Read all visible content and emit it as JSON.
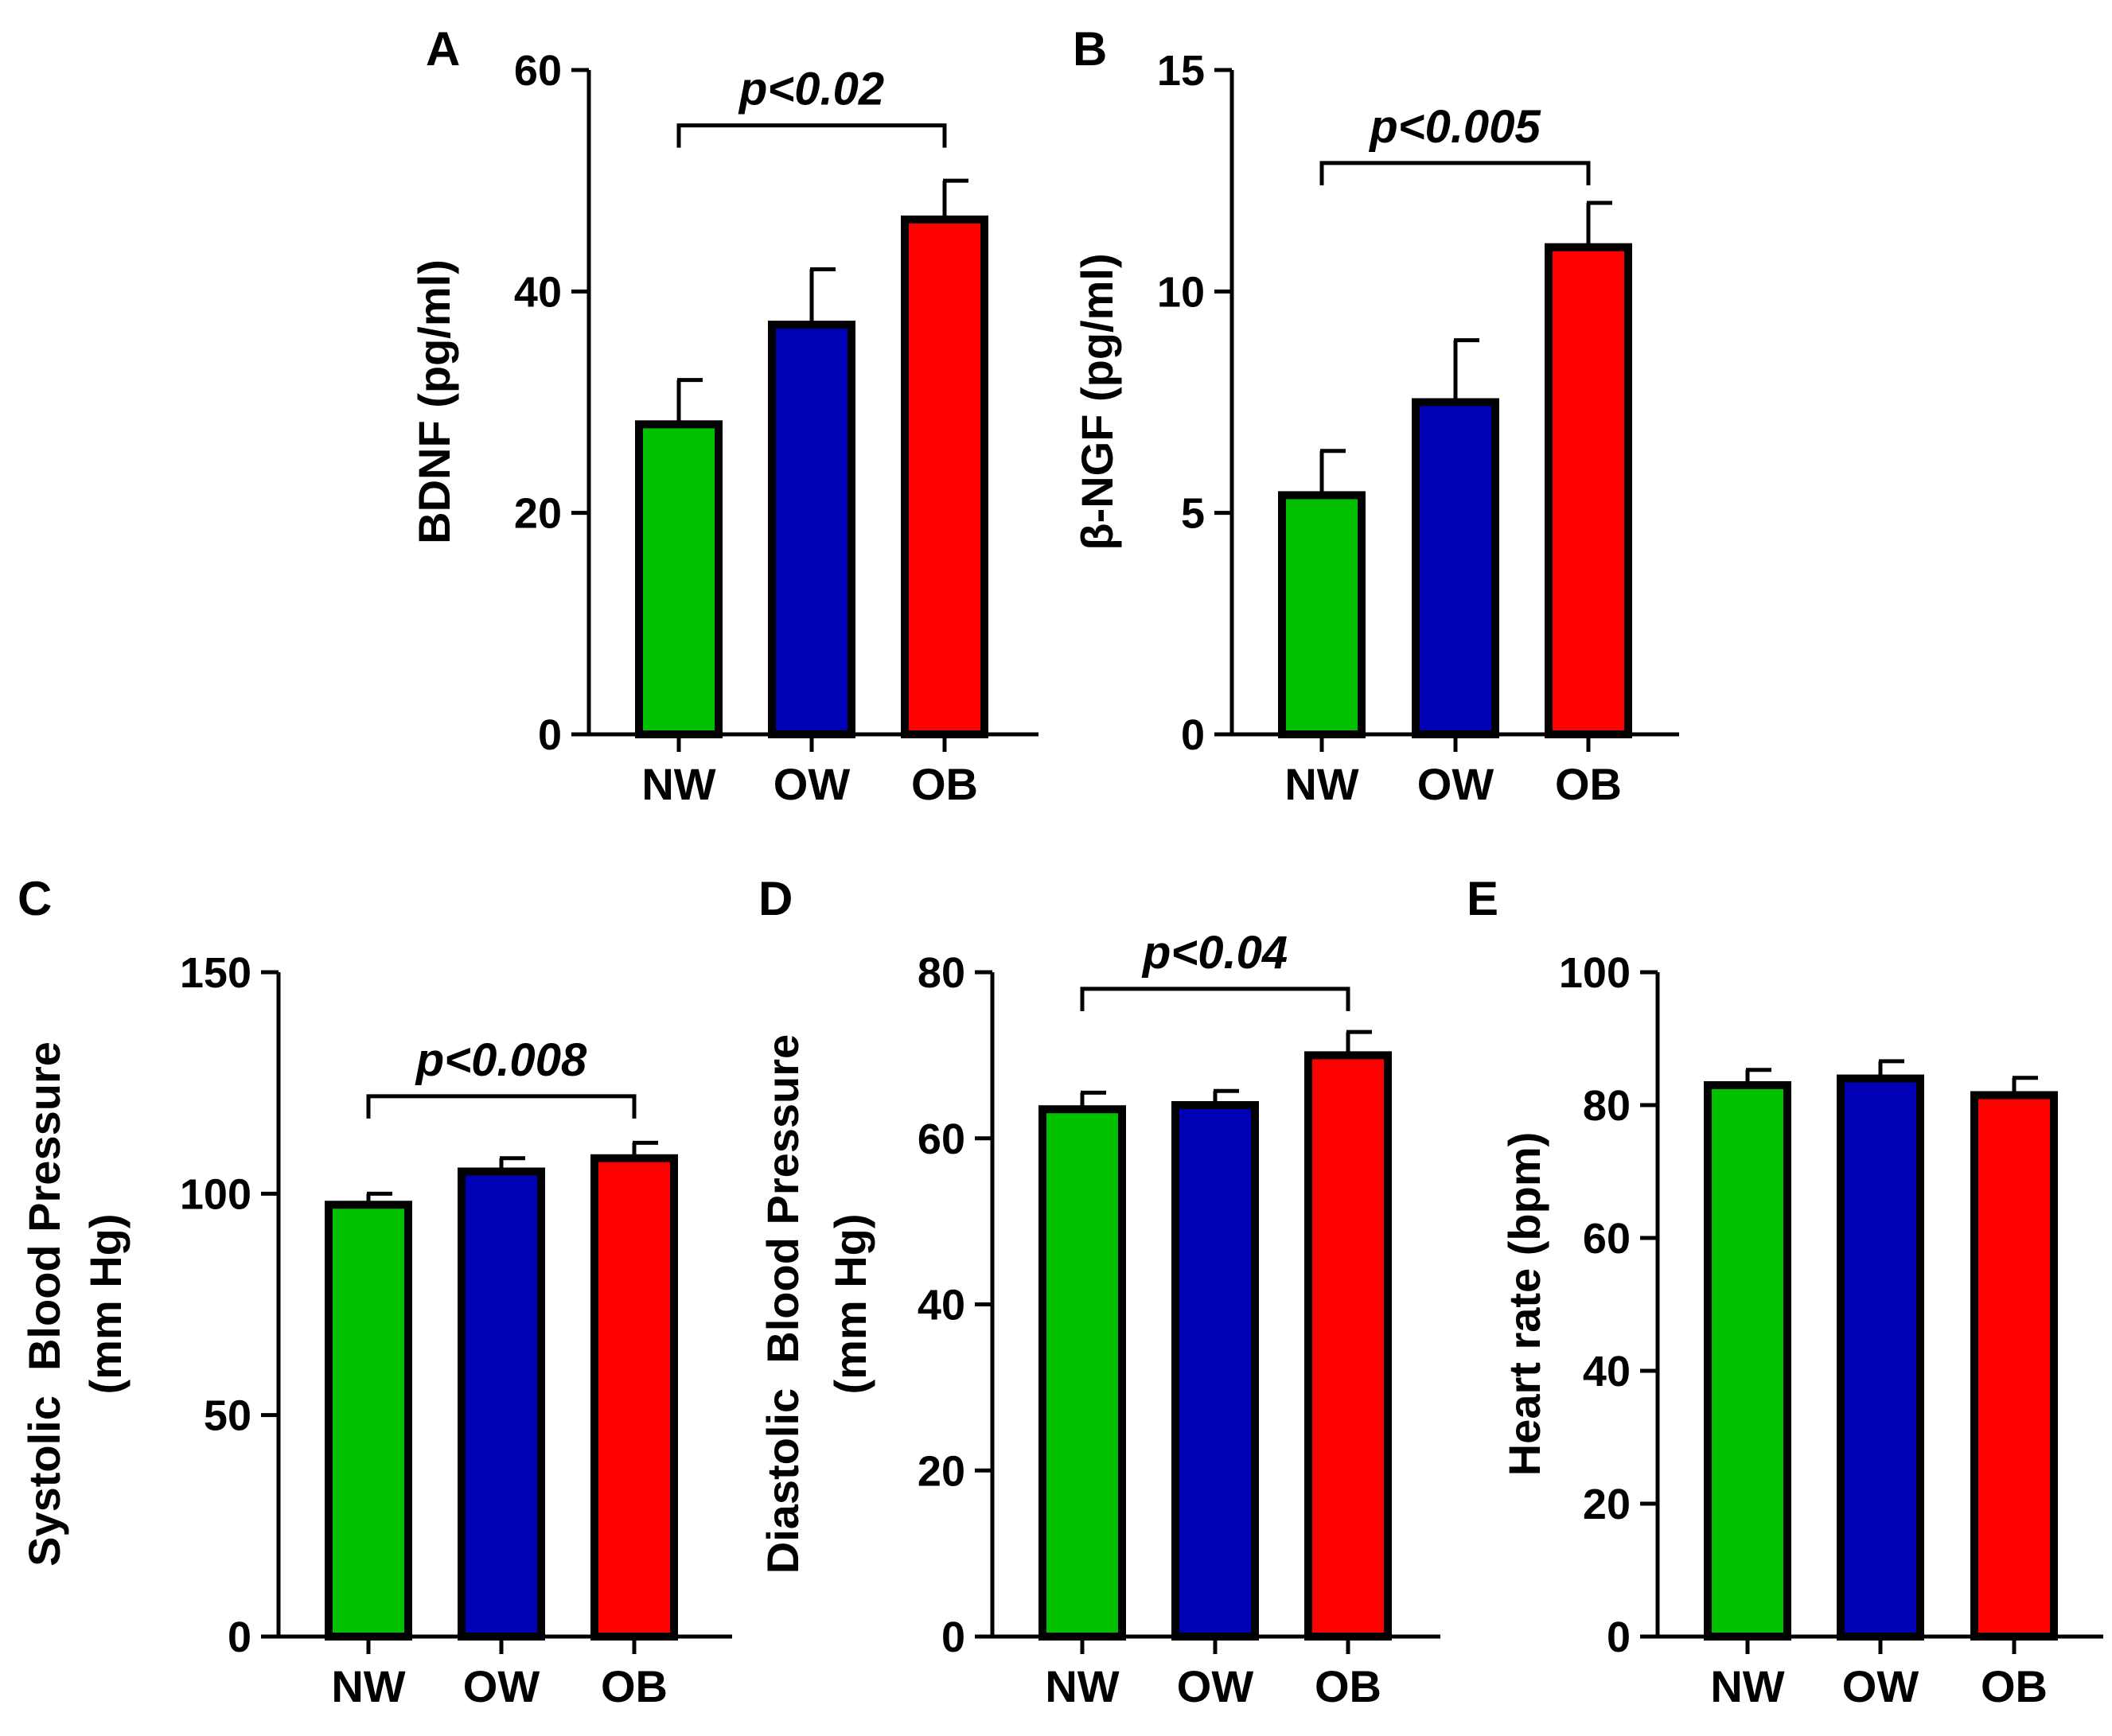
{
  "chart_data": [
    {
      "panel": "A",
      "type": "bar",
      "categories": [
        "NW",
        "OW",
        "OB"
      ],
      "values": [
        28,
        37,
        46.5
      ],
      "errors": [
        4,
        5,
        3.5
      ],
      "colors": [
        "#00c000",
        "#0000b4",
        "#ff0000"
      ],
      "ylabel": "BDNF (pg/ml)",
      "ylim": [
        0,
        60
      ],
      "yticks": [
        "0",
        "20",
        "40",
        "60"
      ],
      "significance": {
        "from": "NW",
        "to": "OB",
        "label": "p<0.02",
        "level": 55
      }
    },
    {
      "panel": "B",
      "type": "bar",
      "categories": [
        "NW",
        "OW",
        "OB"
      ],
      "values": [
        5.4,
        7.5,
        11
      ],
      "errors": [
        1,
        1.4,
        1
      ],
      "colors": [
        "#00c000",
        "#0000b4",
        "#ff0000"
      ],
      "ylabel": "β-NGF (pg/ml)",
      "ylim": [
        0,
        15
      ],
      "yticks": [
        "0",
        "5",
        "10",
        "15"
      ],
      "significance": {
        "from": "NW",
        "to": "OB",
        "label": "p<0.005",
        "level": 12.9
      }
    },
    {
      "panel": "C",
      "type": "bar",
      "categories": [
        "NW",
        "OW",
        "OB"
      ],
      "values": [
        97.5,
        105,
        108
      ],
      "errors": [
        2.5,
        3,
        3.5
      ],
      "colors": [
        "#00c000",
        "#0000b4",
        "#ff0000"
      ],
      "ylabel": [
        "Systolic  Blood Pressure",
        "(mm Hg)"
      ],
      "ylim": [
        0,
        150
      ],
      "yticks": [
        "0",
        "50",
        "100",
        "150"
      ],
      "significance": {
        "from": "NW",
        "to": "OB",
        "label": "p<0.008",
        "level": 122
      }
    },
    {
      "panel": "D",
      "type": "bar",
      "categories": [
        "NW",
        "OW",
        "OB"
      ],
      "values": [
        63.5,
        64,
        70
      ],
      "errors": [
        2,
        1.7,
        2.8
      ],
      "colors": [
        "#00c000",
        "#0000b4",
        "#ff0000"
      ],
      "ylabel": [
        "Diastolic  Blood Pressure",
        "(mm Hg)"
      ],
      "ylim": [
        0,
        80
      ],
      "yticks": [
        "0",
        "20",
        "40",
        "60",
        "80"
      ],
      "significance": {
        "from": "NW",
        "to": "OB",
        "label": "p<0.04",
        "level": 78
      }
    },
    {
      "panel": "E",
      "type": "bar",
      "categories": [
        "NW",
        "OW",
        "OB"
      ],
      "values": [
        83,
        84,
        81.5
      ],
      "errors": [
        2.3,
        2.6,
        2.6
      ],
      "colors": [
        "#00c000",
        "#0000b4",
        "#ff0000"
      ],
      "ylabel": "Heart rate (bpm)",
      "ylim": [
        0,
        100
      ],
      "yticks": [
        "0",
        "20",
        "40",
        "60",
        "80",
        "100"
      ],
      "significance": null
    }
  ]
}
